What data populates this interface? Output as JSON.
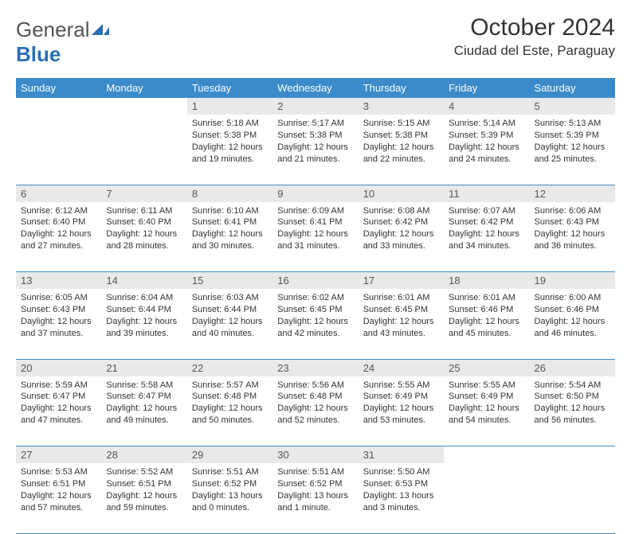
{
  "brand": {
    "name_part1": "General",
    "name_part2": "Blue"
  },
  "title": "October 2024",
  "location": "Ciudad del Este, Paraguay",
  "colors": {
    "header_bg": "#3b8bca",
    "header_text": "#ffffff",
    "daynum_bg": "#e9e9e9",
    "border": "#3b8bca",
    "brand_gray": "#555555",
    "brand_blue": "#2a6fb5",
    "text": "#333333"
  },
  "day_headers": [
    "Sunday",
    "Monday",
    "Tuesday",
    "Wednesday",
    "Thursday",
    "Friday",
    "Saturday"
  ],
  "weeks": [
    [
      null,
      null,
      {
        "n": "1",
        "sr": "5:18 AM",
        "ss": "5:38 PM",
        "dl": "12 hours and 19 minutes."
      },
      {
        "n": "2",
        "sr": "5:17 AM",
        "ss": "5:38 PM",
        "dl": "12 hours and 21 minutes."
      },
      {
        "n": "3",
        "sr": "5:15 AM",
        "ss": "5:38 PM",
        "dl": "12 hours and 22 minutes."
      },
      {
        "n": "4",
        "sr": "5:14 AM",
        "ss": "5:39 PM",
        "dl": "12 hours and 24 minutes."
      },
      {
        "n": "5",
        "sr": "5:13 AM",
        "ss": "5:39 PM",
        "dl": "12 hours and 25 minutes."
      }
    ],
    [
      {
        "n": "6",
        "sr": "6:12 AM",
        "ss": "6:40 PM",
        "dl": "12 hours and 27 minutes."
      },
      {
        "n": "7",
        "sr": "6:11 AM",
        "ss": "6:40 PM",
        "dl": "12 hours and 28 minutes."
      },
      {
        "n": "8",
        "sr": "6:10 AM",
        "ss": "6:41 PM",
        "dl": "12 hours and 30 minutes."
      },
      {
        "n": "9",
        "sr": "6:09 AM",
        "ss": "6:41 PM",
        "dl": "12 hours and 31 minutes."
      },
      {
        "n": "10",
        "sr": "6:08 AM",
        "ss": "6:42 PM",
        "dl": "12 hours and 33 minutes."
      },
      {
        "n": "11",
        "sr": "6:07 AM",
        "ss": "6:42 PM",
        "dl": "12 hours and 34 minutes."
      },
      {
        "n": "12",
        "sr": "6:06 AM",
        "ss": "6:43 PM",
        "dl": "12 hours and 36 minutes."
      }
    ],
    [
      {
        "n": "13",
        "sr": "6:05 AM",
        "ss": "6:43 PM",
        "dl": "12 hours and 37 minutes."
      },
      {
        "n": "14",
        "sr": "6:04 AM",
        "ss": "6:44 PM",
        "dl": "12 hours and 39 minutes."
      },
      {
        "n": "15",
        "sr": "6:03 AM",
        "ss": "6:44 PM",
        "dl": "12 hours and 40 minutes."
      },
      {
        "n": "16",
        "sr": "6:02 AM",
        "ss": "6:45 PM",
        "dl": "12 hours and 42 minutes."
      },
      {
        "n": "17",
        "sr": "6:01 AM",
        "ss": "6:45 PM",
        "dl": "12 hours and 43 minutes."
      },
      {
        "n": "18",
        "sr": "6:01 AM",
        "ss": "6:46 PM",
        "dl": "12 hours and 45 minutes."
      },
      {
        "n": "19",
        "sr": "6:00 AM",
        "ss": "6:46 PM",
        "dl": "12 hours and 46 minutes."
      }
    ],
    [
      {
        "n": "20",
        "sr": "5:59 AM",
        "ss": "6:47 PM",
        "dl": "12 hours and 47 minutes."
      },
      {
        "n": "21",
        "sr": "5:58 AM",
        "ss": "6:47 PM",
        "dl": "12 hours and 49 minutes."
      },
      {
        "n": "22",
        "sr": "5:57 AM",
        "ss": "6:48 PM",
        "dl": "12 hours and 50 minutes."
      },
      {
        "n": "23",
        "sr": "5:56 AM",
        "ss": "6:48 PM",
        "dl": "12 hours and 52 minutes."
      },
      {
        "n": "24",
        "sr": "5:55 AM",
        "ss": "6:49 PM",
        "dl": "12 hours and 53 minutes."
      },
      {
        "n": "25",
        "sr": "5:55 AM",
        "ss": "6:49 PM",
        "dl": "12 hours and 54 minutes."
      },
      {
        "n": "26",
        "sr": "5:54 AM",
        "ss": "6:50 PM",
        "dl": "12 hours and 56 minutes."
      }
    ],
    [
      {
        "n": "27",
        "sr": "5:53 AM",
        "ss": "6:51 PM",
        "dl": "12 hours and 57 minutes."
      },
      {
        "n": "28",
        "sr": "5:52 AM",
        "ss": "6:51 PM",
        "dl": "12 hours and 59 minutes."
      },
      {
        "n": "29",
        "sr": "5:51 AM",
        "ss": "6:52 PM",
        "dl": "13 hours and 0 minutes."
      },
      {
        "n": "30",
        "sr": "5:51 AM",
        "ss": "6:52 PM",
        "dl": "13 hours and 1 minute."
      },
      {
        "n": "31",
        "sr": "5:50 AM",
        "ss": "6:53 PM",
        "dl": "13 hours and 3 minutes."
      },
      null,
      null
    ]
  ],
  "labels": {
    "sunrise": "Sunrise:",
    "sunset": "Sunset:",
    "daylight": "Daylight:"
  }
}
